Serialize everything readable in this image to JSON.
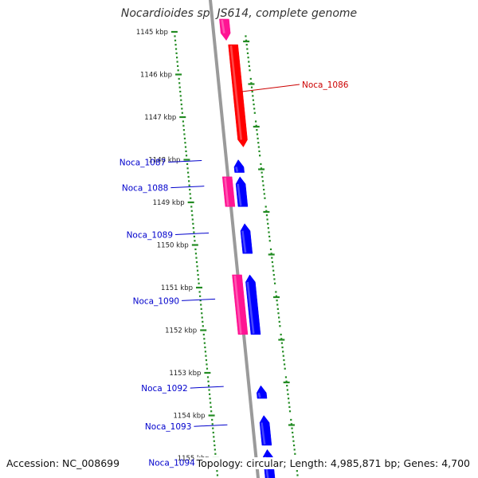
{
  "title": "Nocardioides sp. JS614, complete genome",
  "footer": {
    "accession": "Accession: NC_008699",
    "summary": "Topology: circular; Length: 4,985,871 bp; Genes: 4,700"
  },
  "colors": {
    "backbone": "#9a9a9a",
    "tick": "#228B22",
    "forward_gene": "#0000ff",
    "reverse_gene": "#ff0000",
    "hit": "#ff1493",
    "label_blue": "#0000cc",
    "label_red": "#cc0000"
  },
  "ticks": [
    "1145 kbp",
    "1146 kbp",
    "1147 kbp",
    "1148 kbp",
    "1149 kbp",
    "1150 kbp",
    "1151 kbp",
    "1152 kbp",
    "1153 kbp",
    "1154 kbp",
    "1155 kbp"
  ],
  "genes": [
    {
      "id": "Noca_1086",
      "strand": "reverse",
      "start_kbp": 1145.3,
      "end_kbp": 1147.7,
      "color": "#ff0000",
      "label": "Noca_1086",
      "label_color": "#cc0000"
    },
    {
      "id": "Noca_1087",
      "strand": "forward",
      "start_kbp": 1148.0,
      "end_kbp": 1148.3,
      "color": "#0000ff",
      "label": "Noca_1087",
      "label_color": "#0000cc"
    },
    {
      "id": "Noca_1088",
      "strand": "forward",
      "start_kbp": 1148.4,
      "end_kbp": 1149.1,
      "color": "#0000ff",
      "label": "Noca_1088",
      "label_color": "#0000cc"
    },
    {
      "id": "Noca_1089",
      "strand": "forward",
      "start_kbp": 1149.5,
      "end_kbp": 1150.2,
      "color": "#0000ff",
      "label": "Noca_1089",
      "label_color": "#0000cc"
    },
    {
      "id": "Noca_1090",
      "strand": "forward",
      "start_kbp": 1150.7,
      "end_kbp": 1152.1,
      "color": "#0000ff",
      "label": "Noca_1090",
      "label_color": "#0000cc"
    },
    {
      "id": "Noca_1092",
      "strand": "forward",
      "start_kbp": 1153.3,
      "end_kbp": 1153.6,
      "color": "#0000ff",
      "label": "Noca_1092",
      "label_color": "#0000cc"
    },
    {
      "id": "Noca_1093",
      "strand": "forward",
      "start_kbp": 1154.0,
      "end_kbp": 1154.7,
      "color": "#0000ff",
      "label": "Noca_1093",
      "label_color": "#0000cc"
    },
    {
      "id": "Noca_1094",
      "strand": "forward",
      "start_kbp": 1154.8,
      "end_kbp": 1155.6,
      "color": "#0000ff",
      "label": "Noca_1094",
      "label_color": "#0000cc"
    }
  ],
  "hits": [
    {
      "id": "hit-reverse-1",
      "strand": "reverse",
      "start_kbp": 1144.7,
      "end_kbp": 1145.2,
      "color": "#ff1493"
    },
    {
      "id": "hit-forward-1",
      "strand": "forward",
      "start_kbp": 1148.4,
      "end_kbp": 1149.1,
      "color": "#ff1493"
    },
    {
      "id": "hit-forward-2",
      "strand": "forward",
      "start_kbp": 1150.7,
      "end_kbp": 1152.1,
      "color": "#ff1493"
    }
  ]
}
